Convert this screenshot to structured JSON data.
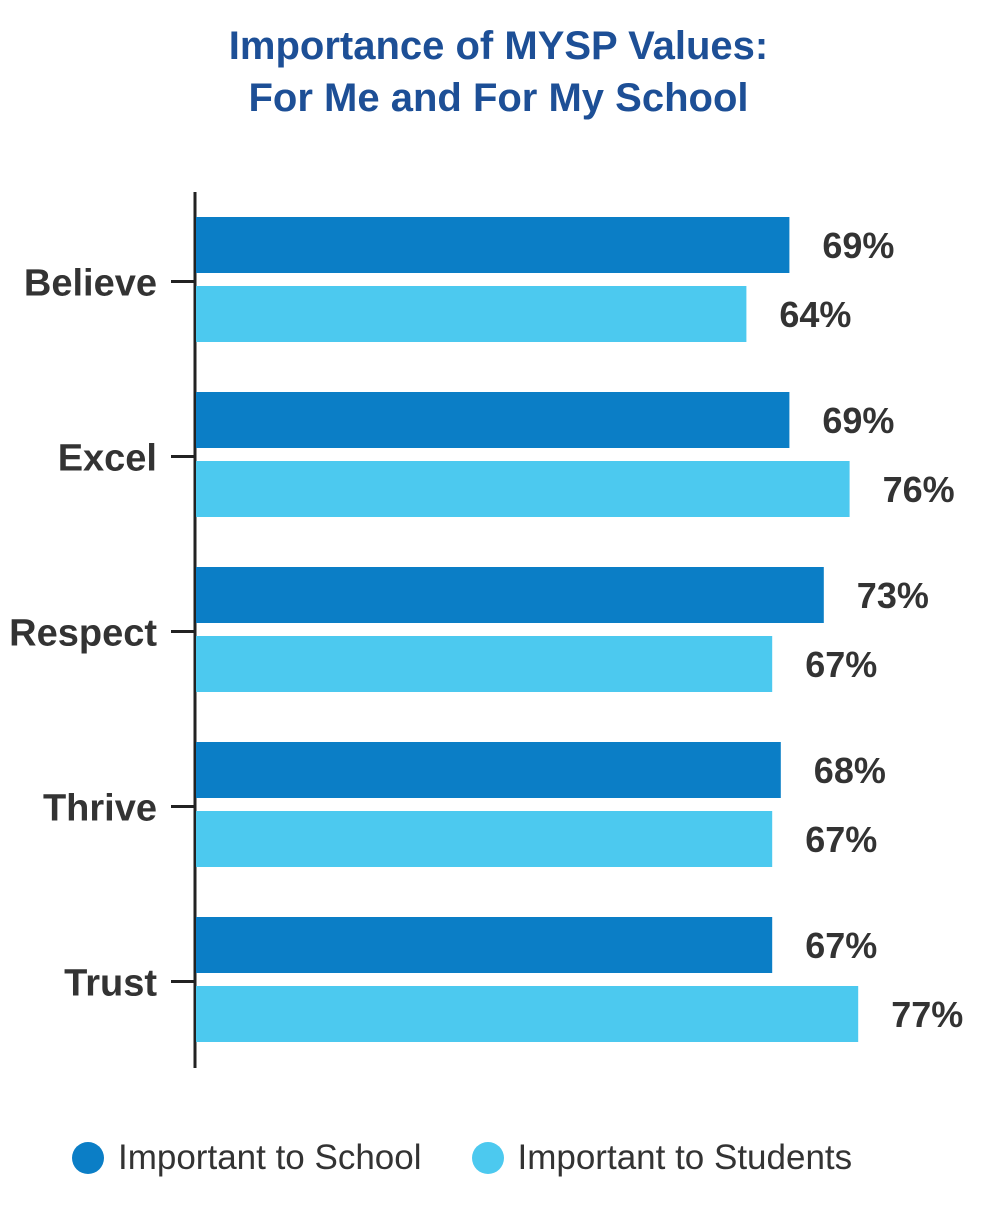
{
  "title_line1": "Importance of MYSP Values:",
  "title_line2": "For Me and For My School",
  "chart_data": {
    "type": "bar",
    "orientation": "horizontal",
    "title": "Importance of MYSP Values: For Me and For My School",
    "categories": [
      "Believe",
      "Excel",
      "Respect",
      "Thrive",
      "Trust"
    ],
    "series": [
      {
        "name": "Important to School",
        "color": "#0b7ec6",
        "values": [
          69,
          69,
          73,
          68,
          67
        ],
        "labels": [
          "69%",
          "69%",
          "73%",
          "68%",
          "67%"
        ]
      },
      {
        "name": "Important to Students",
        "color": "#4cc9ef",
        "values": [
          64,
          76,
          67,
          67,
          77
        ],
        "labels": [
          "64%",
          "76%",
          "67%",
          "67%",
          "77%"
        ]
      }
    ],
    "xlim": [
      0,
      100
    ],
    "grid": false,
    "legend_position": "bottom"
  }
}
